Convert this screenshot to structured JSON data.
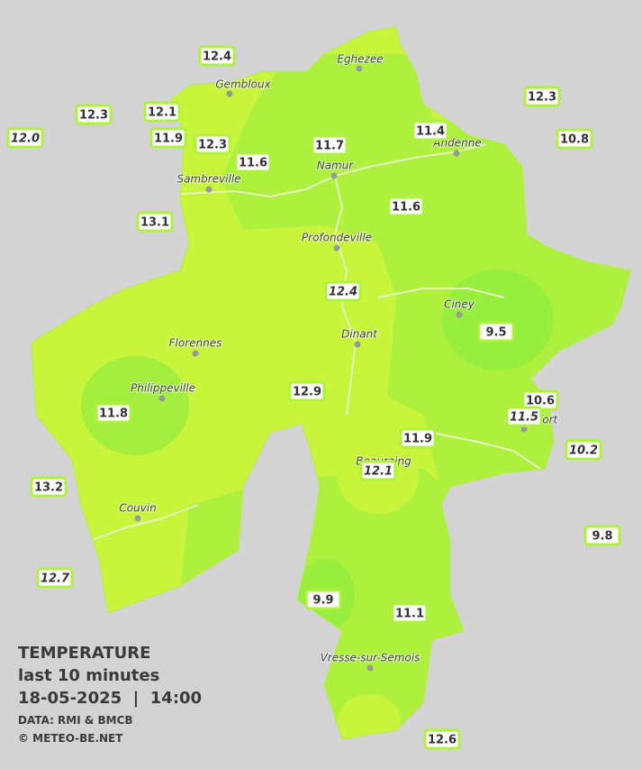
{
  "legend": {
    "title": "TEMPERATURE",
    "period": "last 10 minutes",
    "datetime": "18-05-2025  |  14:00",
    "source": "DATA: RMI & BMCB",
    "credit": "© METEO-BE.NET"
  },
  "cities": [
    "Eghezee",
    "Gembloux",
    "Andenne",
    "Namur",
    "Sambreville",
    "Profondeville",
    "Ciney",
    "Dinant",
    "Florennes",
    "Philippeville",
    "Rochefort",
    "Beauraing",
    "Couvin",
    "Vresse-sur-Semois"
  ],
  "stations": [
    "12.4",
    "12.3",
    "12.1",
    "12.0",
    "11.9",
    "12.3",
    "11.6",
    "11.7",
    "11.4",
    "12.3",
    "10.8",
    "13.1",
    "11.6",
    "12.4",
    "9.5",
    "11.8",
    "12.9",
    "10.6",
    "11.5",
    "11.9",
    "10.2",
    "12.1",
    "13.2",
    "9.8",
    "12.7",
    "9.9",
    "11.1",
    "12.6"
  ]
}
